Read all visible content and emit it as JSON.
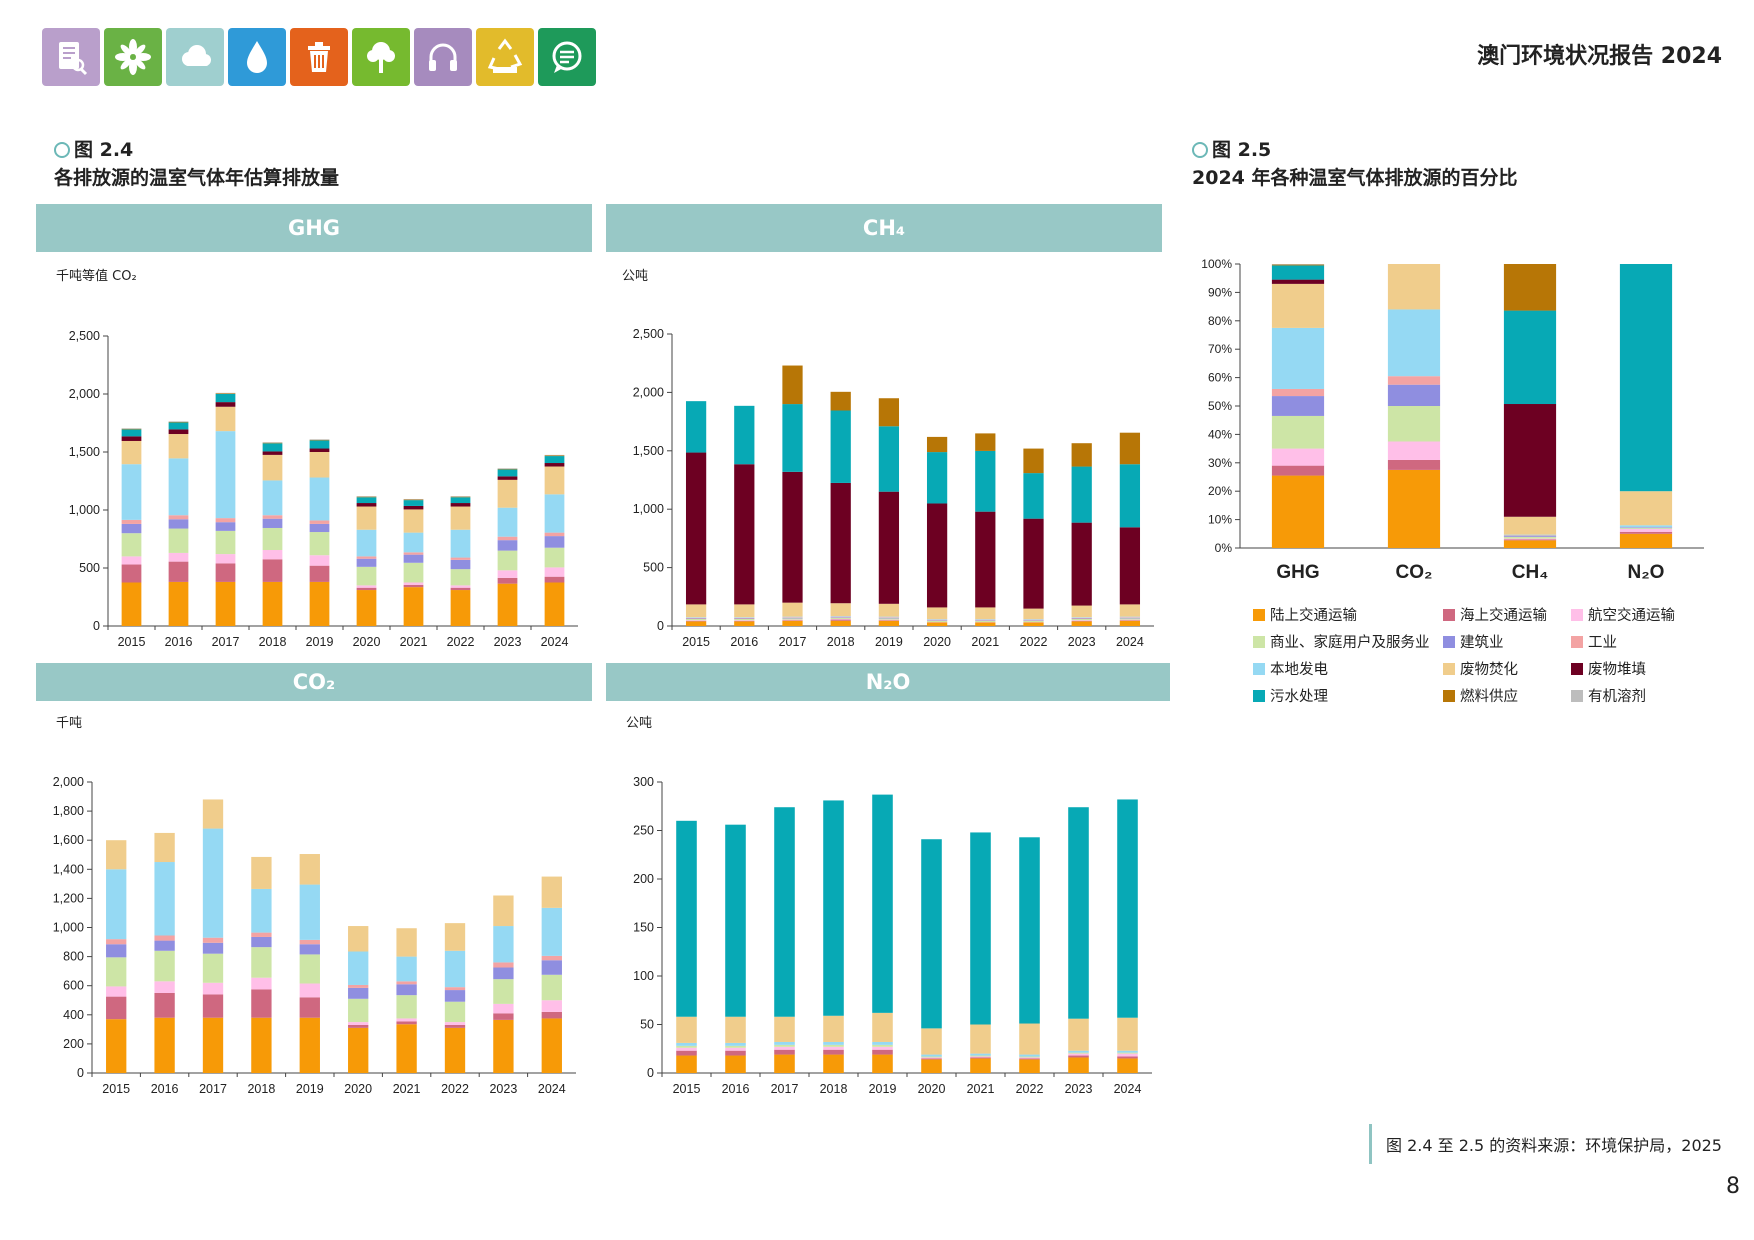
{
  "header": {
    "report_title": "澳门环境状况报告 2024",
    "icons": [
      {
        "name": "report-icon",
        "color": "#b99fcb"
      },
      {
        "name": "leaf-icon",
        "color": "#6ab245"
      },
      {
        "name": "cloud-icon",
        "color": "#9fcfcf"
      },
      {
        "name": "water-drop-icon",
        "color": "#2f9ad8"
      },
      {
        "name": "trash-icon",
        "color": "#e4621c"
      },
      {
        "name": "tree-icon",
        "color": "#76ba2f"
      },
      {
        "name": "headphones-icon",
        "color": "#a68bbe"
      },
      {
        "name": "recycle-icon",
        "color": "#e2bb2b"
      },
      {
        "name": "chat-icon",
        "color": "#1e9a5a"
      }
    ]
  },
  "fig24": {
    "label": "图 2.4",
    "title": "各排放源的温室气体年估算排放量"
  },
  "fig25": {
    "label": "图 2.5",
    "title": "2024 年各种温室气体排放源的百分比"
  },
  "panels": {
    "ghg": {
      "banner": "GHG",
      "unit": "千吨等值 CO₂"
    },
    "ch4": {
      "banner": "CH₄",
      "unit": "公吨"
    },
    "co2": {
      "banner": "CO₂",
      "unit": "千吨"
    },
    "n2o": {
      "banner": "N₂O",
      "unit": "公吨"
    }
  },
  "legend": [
    {
      "label": "陆上交通运输",
      "color": "#f79a07"
    },
    {
      "label": "海上交通运输",
      "color": "#cf6880"
    },
    {
      "label": "航空交通运输",
      "color": "#ffbfe8"
    },
    {
      "label": "商业、家庭用户及服务业",
      "color": "#cde5a6"
    },
    {
      "label": "建筑业",
      "color": "#8f8ee0"
    },
    {
      "label": "工业",
      "color": "#f3a3a3"
    },
    {
      "label": "本地发电",
      "color": "#95d9f3"
    },
    {
      "label": "废物焚化",
      "color": "#f0cd8c"
    },
    {
      "label": "废物堆填",
      "color": "#6d0022"
    },
    {
      "label": "污水处理",
      "color": "#07a9b5"
    },
    {
      "label": "燃料供应",
      "color": "#b77606"
    },
    {
      "label": "有机溶剂",
      "color": "#bdbdbd"
    }
  ],
  "source": "图 2.4 至 2.5 的资料来源：环境保护局，2025",
  "page_number": "8",
  "chart_data": [
    {
      "id": "ghg",
      "type": "bar",
      "stacked": true,
      "title": "GHG",
      "ylabel": "千吨等值 CO₂",
      "ylim": [
        0,
        2500
      ],
      "yticks": [
        "0",
        "500",
        "1,000",
        "1,500",
        "2,000",
        "2,500"
      ],
      "categories": [
        "2015",
        "2016",
        "2017",
        "2018",
        "2019",
        "2020",
        "2021",
        "2022",
        "2023",
        "2024"
      ],
      "series": [
        {
          "name": "陆上交通运输",
          "values": [
            375,
            380,
            380,
            380,
            380,
            310,
            335,
            310,
            365,
            375
          ]
        },
        {
          "name": "海上交通运输",
          "values": [
            155,
            175,
            160,
            195,
            140,
            20,
            20,
            20,
            50,
            50
          ]
        },
        {
          "name": "航空交通运输",
          "values": [
            70,
            75,
            80,
            80,
            90,
            20,
            20,
            20,
            65,
            80
          ]
        },
        {
          "name": "商业、家庭用户及服务业",
          "values": [
            200,
            210,
            200,
            190,
            200,
            160,
            170,
            140,
            170,
            170
          ]
        },
        {
          "name": "建筑业",
          "values": [
            80,
            80,
            75,
            80,
            70,
            70,
            70,
            80,
            90,
            100
          ]
        },
        {
          "name": "工业",
          "values": [
            35,
            35,
            35,
            30,
            30,
            20,
            20,
            20,
            30,
            30
          ]
        },
        {
          "name": "本地发电",
          "values": [
            480,
            490,
            750,
            300,
            370,
            230,
            170,
            240,
            250,
            330
          ]
        },
        {
          "name": "废物焚化",
          "values": [
            200,
            210,
            210,
            220,
            220,
            200,
            200,
            200,
            240,
            240
          ]
        },
        {
          "name": "废物堆填",
          "values": [
            40,
            40,
            40,
            30,
            30,
            30,
            30,
            30,
            30,
            30
          ]
        },
        {
          "name": "污水处理",
          "values": [
            60,
            60,
            70,
            70,
            70,
            50,
            50,
            50,
            60,
            60
          ]
        },
        {
          "name": "燃料供应",
          "values": [
            5,
            5,
            5,
            5,
            5,
            5,
            5,
            5,
            5,
            5
          ]
        },
        {
          "name": "有机溶剂",
          "values": [
            5,
            5,
            5,
            5,
            5,
            5,
            5,
            5,
            5,
            5
          ]
        }
      ]
    },
    {
      "id": "ch4",
      "type": "bar",
      "stacked": true,
      "title": "CH₄",
      "ylabel": "公吨",
      "ylim": [
        0,
        2500
      ],
      "yticks": [
        "0",
        "500",
        "1,000",
        "1,500",
        "2,000",
        "2,500"
      ],
      "categories": [
        "2015",
        "2016",
        "2017",
        "2018",
        "2019",
        "2020",
        "2021",
        "2022",
        "2023",
        "2024"
      ],
      "series": [
        {
          "name": "陆上交通运输",
          "values": [
            40,
            40,
            45,
            45,
            45,
            30,
            30,
            30,
            40,
            45
          ]
        },
        {
          "name": "海上交通运输",
          "values": [
            5,
            5,
            5,
            10,
            5,
            2,
            2,
            2,
            5,
            5
          ]
        },
        {
          "name": "航空交通运输",
          "values": [
            5,
            5,
            5,
            5,
            5,
            2,
            2,
            2,
            5,
            5
          ]
        },
        {
          "name": "商业、家庭用户及服务业",
          "values": [
            10,
            10,
            10,
            10,
            10,
            10,
            10,
            10,
            10,
            10
          ]
        },
        {
          "name": "建筑业",
          "values": [
            5,
            5,
            5,
            5,
            5,
            5,
            5,
            5,
            5,
            5
          ]
        },
        {
          "name": "工业",
          "values": [
            5,
            5,
            5,
            5,
            5,
            5,
            5,
            5,
            5,
            5
          ]
        },
        {
          "name": "本地发电",
          "values": [
            5,
            5,
            5,
            5,
            5,
            5,
            5,
            5,
            5,
            5
          ]
        },
        {
          "name": "废物焚化",
          "values": [
            110,
            110,
            120,
            110,
            110,
            100,
            100,
            90,
            100,
            105
          ]
        },
        {
          "name": "废物堆填",
          "values": [
            1300,
            1200,
            1120,
            1030,
            960,
            890,
            820,
            770,
            710,
            660
          ]
        },
        {
          "name": "污水处理",
          "values": [
            440,
            500,
            580,
            620,
            560,
            440,
            520,
            390,
            480,
            540
          ]
        },
        {
          "name": "燃料供应",
          "values": [
            0,
            0,
            330,
            160,
            240,
            130,
            150,
            210,
            200,
            270
          ]
        },
        {
          "name": "有机溶剂",
          "values": [
            0,
            0,
            0,
            0,
            0,
            0,
            0,
            0,
            0,
            0
          ]
        }
      ]
    },
    {
      "id": "co2",
      "type": "bar",
      "stacked": true,
      "title": "CO₂",
      "ylabel": "千吨",
      "ylim": [
        0,
        2000
      ],
      "yticks": [
        "0",
        "200",
        "400",
        "600",
        "800",
        "1,000",
        "1,200",
        "1,400",
        "1,600",
        "1,800",
        "2,000"
      ],
      "categories": [
        "2015",
        "2016",
        "2017",
        "2018",
        "2019",
        "2020",
        "2021",
        "2022",
        "2023",
        "2024"
      ],
      "series": [
        {
          "name": "陆上交通运输",
          "values": [
            370,
            380,
            380,
            380,
            380,
            310,
            335,
            310,
            365,
            375
          ]
        },
        {
          "name": "海上交通运输",
          "values": [
            155,
            170,
            160,
            195,
            140,
            20,
            20,
            20,
            45,
            45
          ]
        },
        {
          "name": "航空交通运输",
          "values": [
            70,
            80,
            80,
            80,
            95,
            20,
            20,
            20,
            65,
            80
          ]
        },
        {
          "name": "商业、家庭用户及服务业",
          "values": [
            200,
            210,
            200,
            210,
            200,
            160,
            160,
            140,
            170,
            175
          ]
        },
        {
          "name": "建筑业",
          "values": [
            90,
            70,
            75,
            70,
            70,
            75,
            75,
            80,
            80,
            100
          ]
        },
        {
          "name": "工业",
          "values": [
            35,
            35,
            35,
            30,
            30,
            20,
            20,
            20,
            35,
            30
          ]
        },
        {
          "name": "本地发电",
          "values": [
            480,
            505,
            750,
            300,
            380,
            230,
            170,
            250,
            250,
            330
          ]
        },
        {
          "name": "废物焚化",
          "values": [
            200,
            200,
            200,
            220,
            210,
            175,
            195,
            190,
            210,
            215
          ]
        },
        {
          "name": "废物堆填",
          "values": [
            0,
            0,
            0,
            0,
            0,
            0,
            0,
            0,
            0,
            0
          ]
        },
        {
          "name": "污水处理",
          "values": [
            0,
            0,
            0,
            0,
            0,
            0,
            0,
            0,
            0,
            0
          ]
        },
        {
          "name": "燃料供应",
          "values": [
            0,
            0,
            0,
            0,
            0,
            0,
            0,
            0,
            0,
            0
          ]
        },
        {
          "name": "有机溶剂",
          "values": [
            0,
            0,
            0,
            0,
            0,
            0,
            0,
            0,
            0,
            0
          ]
        }
      ]
    },
    {
      "id": "n2o",
      "type": "bar",
      "stacked": true,
      "title": "N₂O",
      "ylabel": "公吨",
      "ylim": [
        0,
        300
      ],
      "yticks": [
        "0",
        "50",
        "100",
        "150",
        "200",
        "250",
        "300"
      ],
      "categories": [
        "2015",
        "2016",
        "2017",
        "2018",
        "2019",
        "2020",
        "2021",
        "2022",
        "2023",
        "2024"
      ],
      "series": [
        {
          "name": "陆上交通运输",
          "values": [
            18,
            18,
            19,
            19,
            19,
            14,
            15,
            14,
            16,
            15
          ]
        },
        {
          "name": "海上交通运输",
          "values": [
            5,
            5,
            5,
            5,
            5,
            1,
            1,
            1,
            2,
            2
          ]
        },
        {
          "name": "航空交通运输",
          "values": [
            3,
            3,
            3,
            3,
            3,
            1,
            1,
            1,
            2,
            3
          ]
        },
        {
          "name": "商业、家庭用户及服务业",
          "values": [
            2,
            2,
            2,
            2,
            2,
            1,
            1,
            1,
            1,
            1
          ]
        },
        {
          "name": "建筑业",
          "values": [
            0,
            0,
            0,
            0,
            0,
            0,
            0,
            0,
            0,
            0
          ]
        },
        {
          "name": "工业",
          "values": [
            0,
            0,
            0,
            0,
            0,
            0,
            0,
            0,
            0,
            0
          ]
        },
        {
          "name": "本地发电",
          "values": [
            3,
            3,
            3,
            3,
            3,
            2,
            2,
            2,
            2,
            2
          ]
        },
        {
          "name": "废物焚化",
          "values": [
            27,
            27,
            26,
            27,
            30,
            27,
            30,
            32,
            33,
            34
          ]
        },
        {
          "name": "废物堆填",
          "values": [
            0,
            0,
            0,
            0,
            0,
            0,
            0,
            0,
            0,
            0
          ]
        },
        {
          "name": "污水处理",
          "values": [
            202,
            198,
            216,
            222,
            225,
            195,
            198,
            192,
            218,
            225
          ]
        },
        {
          "name": "燃料供应",
          "values": [
            0,
            0,
            0,
            0,
            0,
            0,
            0,
            0,
            0,
            0
          ]
        },
        {
          "name": "有机溶剂",
          "values": [
            0,
            0,
            0,
            0,
            0,
            0,
            0,
            0,
            0,
            0
          ]
        }
      ]
    },
    {
      "id": "pct",
      "type": "bar",
      "stacked": true,
      "percent": true,
      "title": "2024 年各种温室气体排放源的百分比",
      "ylim": [
        0,
        100
      ],
      "yticks": [
        "0%",
        "10%",
        "20%",
        "30%",
        "40%",
        "50%",
        "60%",
        "70%",
        "80%",
        "90%",
        "100%"
      ],
      "categories": [
        "GHG",
        "CO₂",
        "CH₄",
        "N₂O"
      ],
      "series": [
        {
          "name": "陆上交通运输",
          "values": [
            25.5,
            27.5,
            2.7,
            5.0
          ]
        },
        {
          "name": "海上交通运输",
          "values": [
            3.5,
            3.5,
            0.3,
            0.7
          ]
        },
        {
          "name": "航空交通运输",
          "values": [
            6.0,
            6.5,
            0.3,
            1.0
          ]
        },
        {
          "name": "商业、家庭用户及服务业",
          "values": [
            11.5,
            12.5,
            0.6,
            0.3
          ]
        },
        {
          "name": "建筑业",
          "values": [
            7.0,
            7.5,
            0.3,
            0.2
          ]
        },
        {
          "name": "工业",
          "values": [
            2.5,
            3.0,
            0.2,
            0.1
          ]
        },
        {
          "name": "本地发电",
          "values": [
            21.5,
            23.5,
            0.3,
            0.7
          ]
        },
        {
          "name": "废物焚化",
          "values": [
            15.5,
            16.0,
            6.3,
            12.0
          ]
        },
        {
          "name": "废物堆填",
          "values": [
            1.5,
            0,
            39.7,
            0
          ]
        },
        {
          "name": "污水处理",
          "values": [
            5.0,
            0,
            32.9,
            80.0
          ]
        },
        {
          "name": "燃料供应",
          "values": [
            0.3,
            0,
            16.4,
            0
          ]
        },
        {
          "name": "有机溶剂",
          "values": [
            0.2,
            0,
            0,
            0
          ]
        }
      ]
    }
  ]
}
